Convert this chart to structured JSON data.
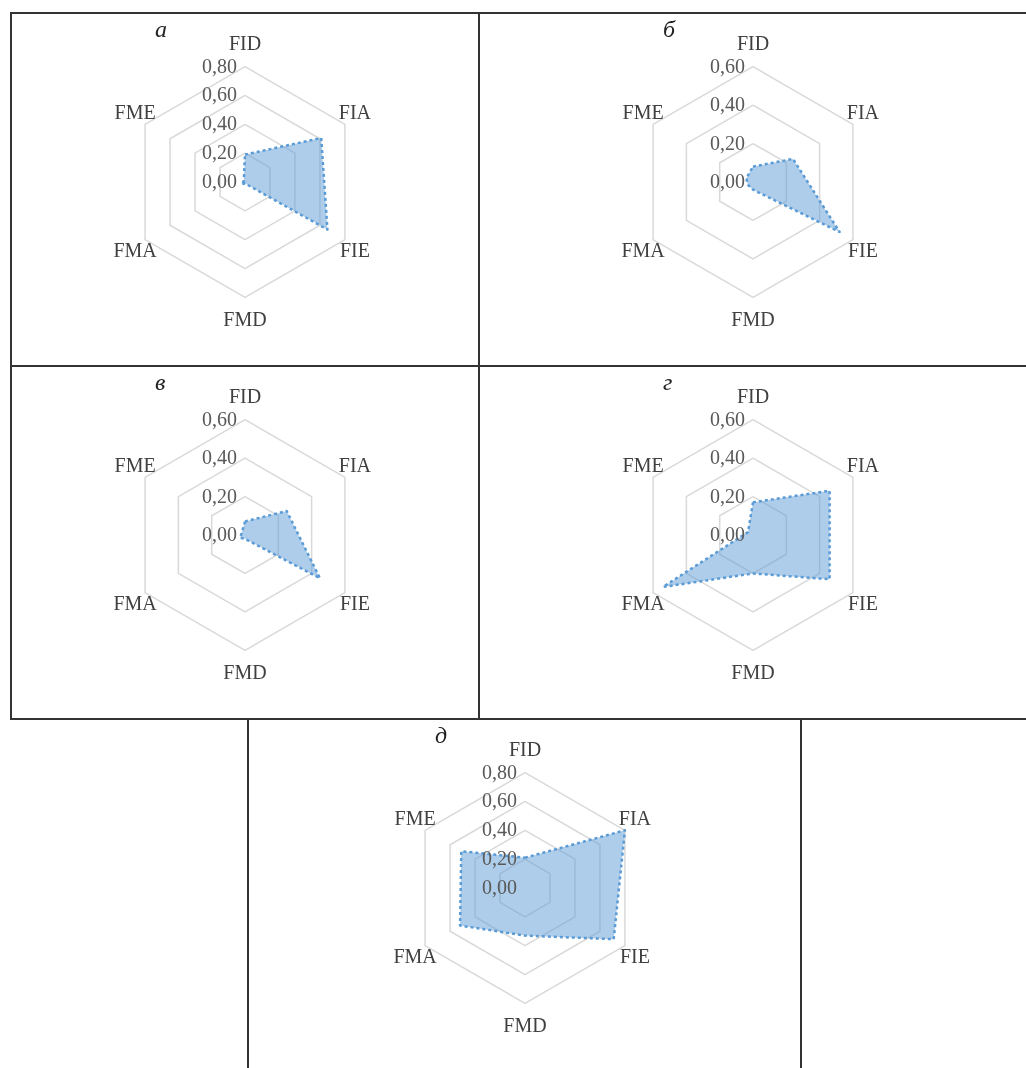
{
  "chart_data": [
    {
      "type": "radar",
      "title": "а",
      "categories": [
        "FID",
        "FIA",
        "FIE",
        "FMD",
        "FMA",
        "FME"
      ],
      "grid": true,
      "line_style": "dotted",
      "ylim": [
        0,
        0.8
      ],
      "yticks": [
        {
          "value": 0,
          "label": "0,00"
        },
        {
          "value": 0.2,
          "label": "0,20"
        },
        {
          "value": 0.4,
          "label": "0,40"
        },
        {
          "value": 0.6,
          "label": "0,60"
        },
        {
          "value": 0.8,
          "label": "0,80"
        }
      ],
      "series": [
        {
          "color": "#5b9bd5",
          "values": [
            0.19,
            0.61,
            0.66,
            0.01,
            0.03,
            0.01
          ]
        }
      ]
    },
    {
      "type": "radar",
      "title": "б",
      "categories": [
        "FID",
        "FIA",
        "FIE",
        "FMD",
        "FMA",
        "FME"
      ],
      "grid": true,
      "line_style": "dotted",
      "ylim": [
        0,
        0.6
      ],
      "yticks": [
        {
          "value": 0,
          "label": "0,00"
        },
        {
          "value": 0.2,
          "label": "0,20"
        },
        {
          "value": 0.4,
          "label": "0,40"
        },
        {
          "value": 0.6,
          "label": "0,60"
        }
      ],
      "series": [
        {
          "color": "#5b9bd5",
          "values": [
            0.08,
            0.24,
            0.52,
            0.04,
            0.03,
            0.04
          ]
        }
      ]
    },
    {
      "type": "radar",
      "title": "в",
      "categories": [
        "FID",
        "FIA",
        "FIE",
        "FMD",
        "FMA",
        "FME"
      ],
      "grid": true,
      "line_style": "dotted",
      "ylim": [
        0,
        0.6
      ],
      "yticks": [
        {
          "value": 0,
          "label": "0,00"
        },
        {
          "value": 0.2,
          "label": "0,20"
        },
        {
          "value": 0.4,
          "label": "0,40"
        },
        {
          "value": 0.6,
          "label": "0,60"
        }
      ],
      "series": [
        {
          "color": "#5b9bd5",
          "values": [
            0.07,
            0.25,
            0.45,
            0.02,
            0.03,
            0.02
          ]
        }
      ]
    },
    {
      "type": "radar",
      "title": "г",
      "categories": [
        "FID",
        "FIA",
        "FIE",
        "FMD",
        "FMA",
        "FME"
      ],
      "grid": true,
      "line_style": "dotted",
      "ylim": [
        0,
        0.6
      ],
      "yticks": [
        {
          "value": 0,
          "label": "0,00"
        },
        {
          "value": 0.2,
          "label": "0,20"
        },
        {
          "value": 0.4,
          "label": "0,40"
        },
        {
          "value": 0.6,
          "label": "0,60"
        }
      ],
      "series": [
        {
          "color": "#5b9bd5",
          "values": [
            0.17,
            0.46,
            0.46,
            0.2,
            0.54,
            0.03
          ]
        }
      ]
    },
    {
      "type": "radar",
      "title": "д",
      "categories": [
        "FID",
        "FIA",
        "FIE",
        "FMD",
        "FMA",
        "FME"
      ],
      "grid": true,
      "line_style": "dotted",
      "ylim": [
        0,
        0.8
      ],
      "yticks": [
        {
          "value": 0,
          "label": "0,00"
        },
        {
          "value": 0.2,
          "label": "0,20"
        },
        {
          "value": 0.4,
          "label": "0,40"
        },
        {
          "value": 0.6,
          "label": "0,60"
        },
        {
          "value": 0.8,
          "label": "0,80"
        }
      ],
      "series": [
        {
          "color": "#5b9bd5",
          "values": [
            0.21,
            0.8,
            0.71,
            0.33,
            0.52,
            0.51
          ]
        }
      ]
    }
  ]
}
